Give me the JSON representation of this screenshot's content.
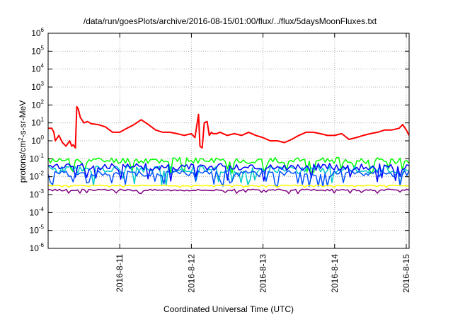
{
  "chart_data": {
    "type": "line",
    "title": "/data/run/goesPlots/archive/2016-08-15/01:00/flux/../flux/5daysMoonFluxes.txt",
    "xlabel": "Coordinated Universal Time (UTC)",
    "ylabel_parts": [
      "protons/cm",
      "2",
      "-s-sr-MeV"
    ],
    "y_scale": "log",
    "ylim": [
      1e-06,
      1000000.0
    ],
    "y_ticks": [
      {
        "value": 1e-06,
        "base": "10",
        "exp": "-6"
      },
      {
        "value": 1e-05,
        "base": "10",
        "exp": "-5"
      },
      {
        "value": 0.0001,
        "base": "10",
        "exp": "-4"
      },
      {
        "value": 0.001,
        "base": "10",
        "exp": "-3"
      },
      {
        "value": 0.01,
        "base": "10",
        "exp": "-2"
      },
      {
        "value": 0.1,
        "base": "10",
        "exp": "-1"
      },
      {
        "value": 1.0,
        "base": "10",
        "exp": "0"
      },
      {
        "value": 10.0,
        "base": "10",
        "exp": "1"
      },
      {
        "value": 100.0,
        "base": "10",
        "exp": "2"
      },
      {
        "value": 1000.0,
        "base": "10",
        "exp": "3"
      },
      {
        "value": 10000.0,
        "base": "10",
        "exp": "4"
      },
      {
        "value": 100000.0,
        "base": "10",
        "exp": "5"
      },
      {
        "value": 1000000.0,
        "base": "10",
        "exp": "6"
      }
    ],
    "x_ticks": [
      {
        "value": 1.0,
        "label": "2016-8-11"
      },
      {
        "value": 2.0,
        "label": "2016-8-12"
      },
      {
        "value": 3.0,
        "label": "2016-8-13"
      },
      {
        "value": 4.0,
        "label": "2016-8-14"
      },
      {
        "value": 5.0,
        "label": "2016-8-15"
      }
    ],
    "xlim": [
      0.0,
      5.04
    ],
    "grid": true,
    "series": [
      {
        "color": "#ff0000",
        "width": 2,
        "x": [
          0.0,
          0.05,
          0.08,
          0.1,
          0.15,
          0.2,
          0.25,
          0.3,
          0.33,
          0.35,
          0.38,
          0.4,
          0.42,
          0.45,
          0.5,
          0.55,
          0.6,
          0.7,
          0.8,
          0.9,
          1.0,
          1.1,
          1.2,
          1.3,
          1.4,
          1.5,
          1.6,
          1.7,
          1.8,
          1.9,
          2.0,
          2.05,
          2.1,
          2.12,
          2.15,
          2.18,
          2.22,
          2.25,
          2.28,
          2.3,
          2.35,
          2.4,
          2.5,
          2.6,
          2.7,
          2.8,
          2.9,
          3.0,
          3.1,
          3.2,
          3.3,
          3.4,
          3.5,
          3.6,
          3.7,
          3.8,
          3.9,
          4.0,
          4.1,
          4.2,
          4.3,
          4.4,
          4.5,
          4.6,
          4.7,
          4.8,
          4.9,
          4.95,
          5.0,
          5.04
        ],
        "y": [
          5,
          5,
          3,
          1,
          2,
          0.8,
          0.5,
          1,
          0.5,
          0.6,
          0.4,
          80,
          60,
          20,
          10,
          12,
          9,
          8,
          6,
          3,
          3,
          5,
          8,
          15,
          8,
          4,
          3,
          3,
          2.5,
          2,
          2.5,
          1.5,
          30,
          0.5,
          0.4,
          10,
          12,
          2,
          3,
          2.5,
          2.5,
          3,
          2,
          2.5,
          2,
          3,
          2,
          1.5,
          1,
          1,
          0.8,
          1.2,
          2,
          3,
          3,
          2.5,
          2,
          2,
          2.5,
          1.2,
          1.5,
          2,
          2.5,
          3,
          4,
          4,
          5,
          8,
          4,
          2
        ]
      },
      {
        "color": "#00ff00",
        "width": 1.5,
        "base": 0.08,
        "amp": 0.35,
        "seed": 11,
        "x_start": 0.0,
        "x_end": 5.04,
        "count": 160
      },
      {
        "color": "#00c8c8",
        "width": 1.5,
        "base": 0.025,
        "amp": 0.45,
        "seed": 23,
        "x_start": 0.0,
        "x_end": 5.04,
        "count": 160
      },
      {
        "color": "#0000ff",
        "width": 1.5,
        "base": 0.035,
        "amp": 0.4,
        "seed": 37,
        "x_start": 0.0,
        "x_end": 5.04,
        "count": 160
      },
      {
        "color": "#0050ff",
        "width": 1.5,
        "base": 0.015,
        "amp": 0.35,
        "seed": 51,
        "x_start": 0.0,
        "x_end": 5.04,
        "count": 160
      },
      {
        "color": "#ffff00",
        "width": 1.5,
        "base": 0.0032,
        "amp": 0.05,
        "seed": 67,
        "x_start": 0.0,
        "x_end": 5.04,
        "count": 160
      },
      {
        "color": "#800080",
        "width": 1.5,
        "base": 0.0018,
        "amp": 0.1,
        "seed": 79,
        "x_start": 0.0,
        "x_end": 5.04,
        "count": 160
      }
    ]
  }
}
